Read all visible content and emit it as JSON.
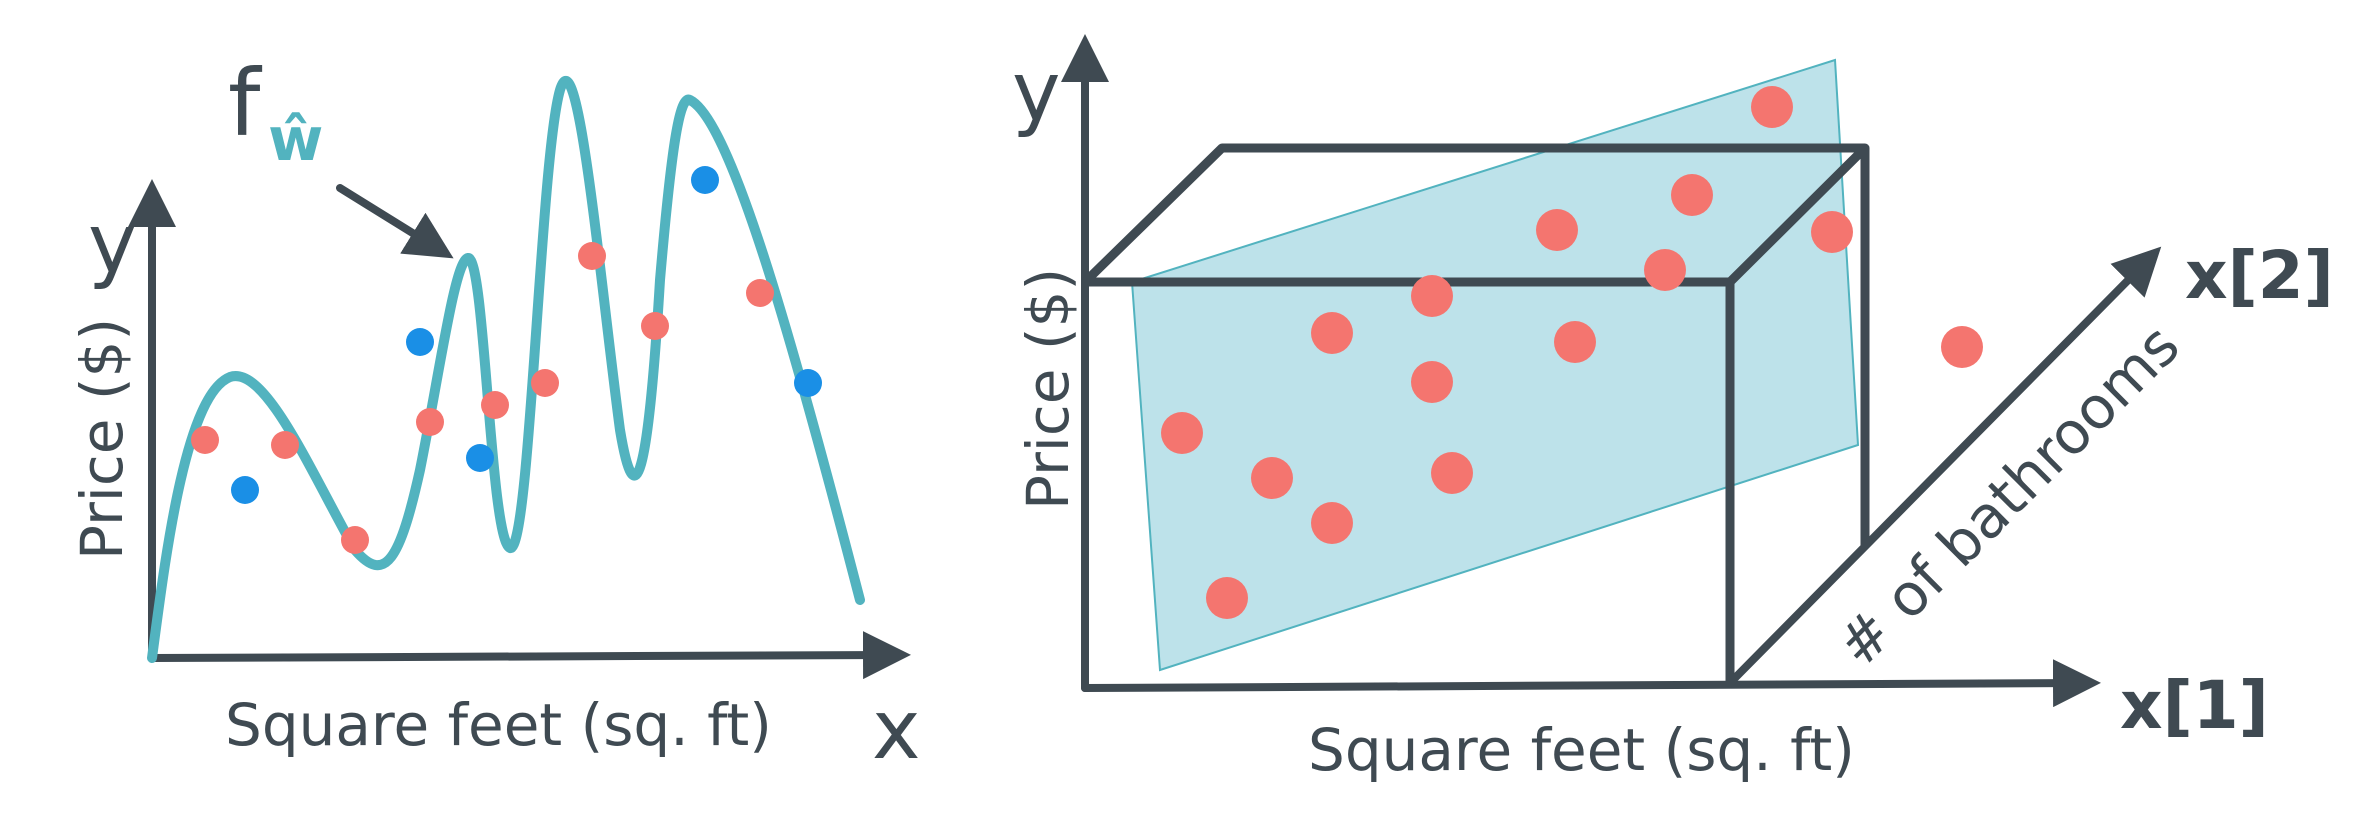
{
  "left_panel": {
    "function_label": "f",
    "function_subscript": "ŵ",
    "y_axis_symbol": "y",
    "y_axis_label": "Price ($)",
    "x_axis_label": "Square feet (sq. ft)",
    "x_axis_symbol": "x",
    "curve_color": "#52b3bf",
    "training_point_color": "#f4756f",
    "test_point_color": "#1a8fe6",
    "training_points": [
      [
        205,
        440
      ],
      [
        285,
        445
      ],
      [
        355,
        540
      ],
      [
        430,
        422
      ],
      [
        495,
        405
      ],
      [
        545,
        383
      ],
      [
        592,
        256
      ],
      [
        655,
        326
      ],
      [
        760,
        293
      ]
    ],
    "test_points": [
      [
        245,
        490
      ],
      [
        420,
        342
      ],
      [
        480,
        458
      ],
      [
        705,
        180
      ],
      [
        808,
        383
      ]
    ]
  },
  "right_panel": {
    "y_axis_symbol": "y",
    "y_axis_label": "Price ($)",
    "x1_axis_label": "Square feet (sq. ft)",
    "x1_axis_symbol": "x[1]",
    "x2_axis_label": "# of bathrooms",
    "x2_axis_symbol": "x[2]",
    "plane_color": "#bde2ea",
    "point_color": "#f4756f",
    "points": [
      [
        1772,
        107
      ],
      [
        1692,
        195
      ],
      [
        1557,
        230
      ],
      [
        1832,
        232
      ],
      [
        1665,
        270
      ],
      [
        1432,
        296
      ],
      [
        1332,
        333
      ],
      [
        1575,
        342
      ],
      [
        1432,
        382
      ],
      [
        1962,
        347
      ],
      [
        1182,
        433
      ],
      [
        1272,
        478
      ],
      [
        1452,
        473
      ],
      [
        1332,
        523
      ],
      [
        1227,
        598
      ]
    ]
  }
}
